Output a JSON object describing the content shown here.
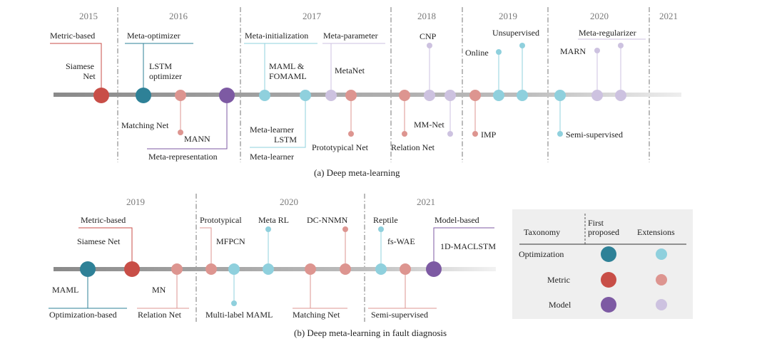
{
  "colors": {
    "opt_first": "#2e8197",
    "opt_ext": "#8fd0dd",
    "met_first": "#c84e47",
    "met_ext": "#dd9590",
    "mod_first": "#7d5aa3",
    "mod_ext": "#cdc2e0",
    "axis": "#999999"
  },
  "panel_a": {
    "years": [
      "2015",
      "2016",
      "2017",
      "2018",
      "2019",
      "2020",
      "2021"
    ],
    "category_labels": {
      "metric_based": "Metric-based",
      "meta_optimizer": "Meta-optimizer",
      "meta_initialization": "Meta-initialization",
      "meta_parameter": "Meta-parameter",
      "meta_representation": "Meta-representation",
      "meta_learner_1": "Meta-learner",
      "meta_learner_2": "Meta-learner",
      "meta_regularizer": "Meta-regularizer"
    },
    "methods": {
      "siamese_net_1": "Siamese",
      "siamese_net_2": "Net",
      "lstm_optimizer_1": "LSTM",
      "lstm_optimizer_2": "optimizer",
      "matching_net": "Matching Net",
      "mann": "MANN",
      "maml_fomaml_1": "MAML &",
      "maml_fomaml_2": "FOMAML",
      "meta_learner_lstm": "LSTM",
      "metanet": "MetaNet",
      "prototypical_net": "Prototypical Net",
      "relation_net": "Relation Net",
      "cnp": "CNP",
      "mm_net": "MM-Net",
      "imp": "IMP",
      "online": "Online",
      "unsupervised": "Unsupervised",
      "semi_supervised": "Semi-supervised",
      "marn": "MARN"
    },
    "caption": "(a) Deep meta-learning"
  },
  "panel_b": {
    "years": [
      "2019",
      "2020",
      "2021"
    ],
    "category_labels": {
      "metric_based": "Metric-based",
      "optimization_based": "Optimization-based",
      "relation_net": "Relation Net",
      "prototypical": "Prototypical",
      "matching_net": "Matching Net",
      "semi_supervised": "Semi-supervised",
      "model_based": "Model-based"
    },
    "methods": {
      "siamese_net": "Siamese Net",
      "maml": "MAML",
      "mn": "MN",
      "mfpcn": "MFPCN",
      "multi_label_maml": "Multi-label MAML",
      "meta_rl": "Meta RL",
      "dc_nnmn": "DC-NNMN",
      "reptile": "Reptile",
      "fs_wae": "fs-WAE",
      "one_d_maclstm": "1D-MACLSTM"
    },
    "caption": "(b) Deep meta-learning in fault diagnosis"
  },
  "legend": {
    "header_taxonomy": "Taxonomy",
    "header_first_1": "First",
    "header_first_2": "proposed",
    "header_extensions": "Extensions",
    "rows": [
      "Optimization",
      "Metric",
      "Model"
    ]
  }
}
